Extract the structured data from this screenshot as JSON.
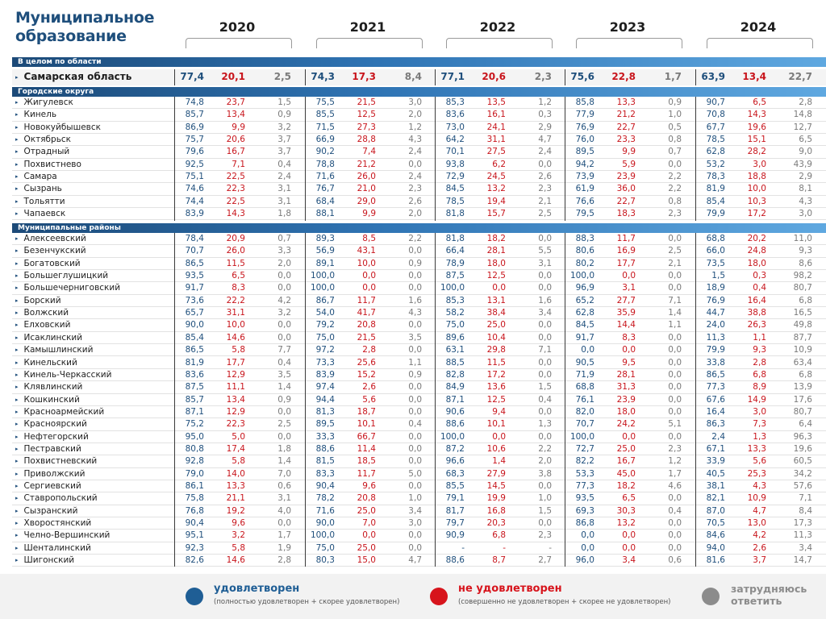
{
  "title": "Муниципальное образование",
  "years": [
    "2020",
    "2021",
    "2022",
    "2023",
    "2024"
  ],
  "sections": {
    "region": "В целом по области",
    "cities": "Городские округа",
    "districts": "Муниципальные районы"
  },
  "legend": {
    "satisfied": "удовлетворен",
    "satisfied_sub": "(полностью удовлетворен + скорее удовлетворен)",
    "unsatisfied": "не удовлетворен",
    "unsatisfied_sub": "(совершенно не удовлетворен + скорее не удовлетворен)",
    "hard": "затрудняюсь ответить"
  },
  "colors": {
    "satisfied": "#1f5e95",
    "unsatisfied": "#d7141c",
    "hard": "#8c8c8c",
    "header": "#1f4f7c"
  },
  "chart_data": {
    "type": "table",
    "columns_per_year": [
      "удовлетворен",
      "не удовлетворен",
      "затрудняюсь ответить"
    ],
    "region": [
      {
        "name": "Самарская область",
        "values": [
          "77,4",
          "20,1",
          "2,5",
          "74,3",
          "17,3",
          "8,4",
          "77,1",
          "20,6",
          "2,3",
          "75,6",
          "22,8",
          "1,7",
          "63,9",
          "13,4",
          "22,7"
        ]
      }
    ],
    "cities": [
      {
        "name": "Жигулевск",
        "values": [
          "74,8",
          "23,7",
          "1,5",
          "75,5",
          "21,5",
          "3,0",
          "85,3",
          "13,5",
          "1,2",
          "85,8",
          "13,3",
          "0,9",
          "90,7",
          "6,5",
          "2,8"
        ]
      },
      {
        "name": "Кинель",
        "values": [
          "85,7",
          "13,4",
          "0,9",
          "85,5",
          "12,5",
          "2,0",
          "83,6",
          "16,1",
          "0,3",
          "77,9",
          "21,2",
          "1,0",
          "70,8",
          "14,3",
          "14,8"
        ]
      },
      {
        "name": "Новокуйбышевск",
        "values": [
          "86,9",
          "9,9",
          "3,2",
          "71,5",
          "27,3",
          "1,2",
          "73,0",
          "24,1",
          "2,9",
          "76,9",
          "22,7",
          "0,5",
          "67,7",
          "19,6",
          "12,7"
        ]
      },
      {
        "name": "Октябрьск",
        "values": [
          "75,7",
          "20,6",
          "3,7",
          "66,9",
          "28,8",
          "4,3",
          "64,2",
          "31,1",
          "4,7",
          "76,0",
          "23,3",
          "0,8",
          "78,5",
          "15,1",
          "6,5"
        ]
      },
      {
        "name": "Отрадный",
        "values": [
          "79,6",
          "16,7",
          "3,7",
          "90,2",
          "7,4",
          "2,4",
          "70,1",
          "27,5",
          "2,4",
          "89,5",
          "9,9",
          "0,7",
          "62,8",
          "28,2",
          "9,0"
        ]
      },
      {
        "name": "Похвистнево",
        "values": [
          "92,5",
          "7,1",
          "0,4",
          "78,8",
          "21,2",
          "0,0",
          "93,8",
          "6,2",
          "0,0",
          "94,2",
          "5,9",
          "0,0",
          "53,2",
          "3,0",
          "43,9"
        ]
      },
      {
        "name": "Самара",
        "values": [
          "75,1",
          "22,5",
          "2,4",
          "71,6",
          "26,0",
          "2,4",
          "72,9",
          "24,5",
          "2,6",
          "73,9",
          "23,9",
          "2,2",
          "78,3",
          "18,8",
          "2,9"
        ]
      },
      {
        "name": "Сызрань",
        "values": [
          "74,6",
          "22,3",
          "3,1",
          "76,7",
          "21,0",
          "2,3",
          "84,5",
          "13,2",
          "2,3",
          "61,9",
          "36,0",
          "2,2",
          "81,9",
          "10,0",
          "8,1"
        ]
      },
      {
        "name": "Тольятти",
        "values": [
          "74,4",
          "22,5",
          "3,1",
          "68,4",
          "29,0",
          "2,6",
          "78,5",
          "19,4",
          "2,1",
          "76,6",
          "22,7",
          "0,8",
          "85,4",
          "10,3",
          "4,3"
        ]
      },
      {
        "name": "Чапаевск",
        "values": [
          "83,9",
          "14,3",
          "1,8",
          "88,1",
          "9,9",
          "2,0",
          "81,8",
          "15,7",
          "2,5",
          "79,5",
          "18,3",
          "2,3",
          "79,9",
          "17,2",
          "3,0"
        ]
      }
    ],
    "districts": [
      {
        "name": "Алексеевский",
        "values": [
          "78,4",
          "20,9",
          "0,7",
          "89,3",
          "8,5",
          "2,2",
          "81,8",
          "18,2",
          "0,0",
          "88,3",
          "11,7",
          "0,0",
          "68,8",
          "20,2",
          "11,0"
        ]
      },
      {
        "name": "Безенчукский",
        "values": [
          "70,7",
          "26,0",
          "3,3",
          "56,9",
          "43,1",
          "0,0",
          "66,4",
          "28,1",
          "5,5",
          "80,6",
          "16,9",
          "2,5",
          "66,0",
          "24,8",
          "9,3"
        ]
      },
      {
        "name": "Богатовский",
        "values": [
          "86,5",
          "11,5",
          "2,0",
          "89,1",
          "10,0",
          "0,9",
          "78,9",
          "18,0",
          "3,1",
          "80,2",
          "17,7",
          "2,1",
          "73,5",
          "18,0",
          "8,6"
        ]
      },
      {
        "name": "Большеглушицкий",
        "values": [
          "93,5",
          "6,5",
          "0,0",
          "100,0",
          "0,0",
          "0,0",
          "87,5",
          "12,5",
          "0,0",
          "100,0",
          "0,0",
          "0,0",
          "1,5",
          "0,3",
          "98,2"
        ]
      },
      {
        "name": "Большечерниговский",
        "values": [
          "91,7",
          "8,3",
          "0,0",
          "100,0",
          "0,0",
          "0,0",
          "100,0",
          "0,0",
          "0,0",
          "96,9",
          "3,1",
          "0,0",
          "18,9",
          "0,4",
          "80,7"
        ]
      },
      {
        "name": "Борский",
        "values": [
          "73,6",
          "22,2",
          "4,2",
          "86,7",
          "11,7",
          "1,6",
          "85,3",
          "13,1",
          "1,6",
          "65,2",
          "27,7",
          "7,1",
          "76,9",
          "16,4",
          "6,8"
        ]
      },
      {
        "name": "Волжский",
        "values": [
          "65,7",
          "31,1",
          "3,2",
          "54,0",
          "41,7",
          "4,3",
          "58,2",
          "38,4",
          "3,4",
          "62,8",
          "35,9",
          "1,4",
          "44,7",
          "38,8",
          "16,5"
        ]
      },
      {
        "name": "Елховский",
        "values": [
          "90,0",
          "10,0",
          "0,0",
          "79,2",
          "20,8",
          "0,0",
          "75,0",
          "25,0",
          "0,0",
          "84,5",
          "14,4",
          "1,1",
          "24,0",
          "26,3",
          "49,8"
        ]
      },
      {
        "name": "Исаклинский",
        "values": [
          "85,4",
          "14,6",
          "0,0",
          "75,0",
          "21,5",
          "3,5",
          "89,6",
          "10,4",
          "0,0",
          "91,7",
          "8,3",
          "0,0",
          "11,3",
          "1,1",
          "87,7"
        ]
      },
      {
        "name": "Камышлинский",
        "values": [
          "86,5",
          "5,8",
          "7,7",
          "97,2",
          "2,8",
          "0,0",
          "63,1",
          "29,8",
          "7,1",
          "0,0",
          "0,0",
          "0,0",
          "79,9",
          "9,3",
          "10,9"
        ]
      },
      {
        "name": "Кинельский",
        "values": [
          "81,9",
          "17,7",
          "0,4",
          "73,3",
          "25,6",
          "1,1",
          "88,5",
          "11,5",
          "0,0",
          "90,5",
          "9,5",
          "0,0",
          "33,8",
          "2,8",
          "63,4"
        ]
      },
      {
        "name": "Кинель-Черкасский",
        "values": [
          "83,6",
          "12,9",
          "3,5",
          "83,9",
          "15,2",
          "0,9",
          "82,8",
          "17,2",
          "0,0",
          "71,9",
          "28,1",
          "0,0",
          "86,5",
          "6,8",
          "6,8"
        ]
      },
      {
        "name": "Клявлинский",
        "values": [
          "87,5",
          "11,1",
          "1,4",
          "97,4",
          "2,6",
          "0,0",
          "84,9",
          "13,6",
          "1,5",
          "68,8",
          "31,3",
          "0,0",
          "77,3",
          "8,9",
          "13,9"
        ]
      },
      {
        "name": "Кошкинский",
        "values": [
          "85,7",
          "13,4",
          "0,9",
          "94,4",
          "5,6",
          "0,0",
          "87,1",
          "12,5",
          "0,4",
          "76,1",
          "23,9",
          "0,0",
          "67,6",
          "14,9",
          "17,6"
        ]
      },
      {
        "name": "Красноармейский",
        "values": [
          "87,1",
          "12,9",
          "0,0",
          "81,3",
          "18,7",
          "0,0",
          "90,6",
          "9,4",
          "0,0",
          "82,0",
          "18,0",
          "0,0",
          "16,4",
          "3,0",
          "80,7"
        ]
      },
      {
        "name": "Красноярский",
        "values": [
          "75,2",
          "22,3",
          "2,5",
          "89,5",
          "10,1",
          "0,4",
          "88,6",
          "10,1",
          "1,3",
          "70,7",
          "24,2",
          "5,1",
          "86,3",
          "7,3",
          "6,4"
        ]
      },
      {
        "name": "Нефтегорский",
        "values": [
          "95,0",
          "5,0",
          "0,0",
          "33,3",
          "66,7",
          "0,0",
          "100,0",
          "0,0",
          "0,0",
          "100,0",
          "0,0",
          "0,0",
          "2,4",
          "1,3",
          "96,3"
        ]
      },
      {
        "name": "Пестравский",
        "values": [
          "80,8",
          "17,4",
          "1,8",
          "88,6",
          "11,4",
          "0,0",
          "87,2",
          "10,6",
          "2,2",
          "72,7",
          "25,0",
          "2,3",
          "67,1",
          "13,3",
          "19,6"
        ]
      },
      {
        "name": "Похвистневский",
        "values": [
          "92,8",
          "5,8",
          "1,4",
          "81,5",
          "18,5",
          "0,0",
          "96,6",
          "1,4",
          "2,0",
          "82,2",
          "16,7",
          "1,2",
          "33,9",
          "5,6",
          "60,5"
        ]
      },
      {
        "name": "Приволжский",
        "values": [
          "79,0",
          "14,0",
          "7,0",
          "83,3",
          "11,7",
          "5,0",
          "68,3",
          "27,9",
          "3,8",
          "53,3",
          "45,0",
          "1,7",
          "40,5",
          "25,3",
          "34,2"
        ]
      },
      {
        "name": "Сергиевский",
        "values": [
          "86,1",
          "13,3",
          "0,6",
          "90,4",
          "9,6",
          "0,0",
          "85,5",
          "14,5",
          "0,0",
          "77,3",
          "18,2",
          "4,6",
          "38,1",
          "4,3",
          "57,6"
        ]
      },
      {
        "name": "Ставропольский",
        "values": [
          "75,8",
          "21,1",
          "3,1",
          "78,2",
          "20,8",
          "1,0",
          "79,1",
          "19,9",
          "1,0",
          "93,5",
          "6,5",
          "0,0",
          "82,1",
          "10,9",
          "7,1"
        ]
      },
      {
        "name": "Сызранский",
        "values": [
          "76,8",
          "19,2",
          "4,0",
          "71,6",
          "25,0",
          "3,4",
          "81,7",
          "16,8",
          "1,5",
          "69,3",
          "30,3",
          "0,4",
          "87,0",
          "4,7",
          "8,4"
        ]
      },
      {
        "name": "Хворостянский",
        "values": [
          "90,4",
          "9,6",
          "0,0",
          "90,0",
          "7,0",
          "3,0",
          "79,7",
          "20,3",
          "0,0",
          "86,8",
          "13,2",
          "0,0",
          "70,5",
          "13,0",
          "17,3"
        ]
      },
      {
        "name": "Челно-Вершинский",
        "values": [
          "95,1",
          "3,2",
          "1,7",
          "100,0",
          "0,0",
          "0,0",
          "90,9",
          "6,8",
          "2,3",
          "0,0",
          "0,0",
          "0,0",
          "84,6",
          "4,2",
          "11,3"
        ]
      },
      {
        "name": "Шенталинский",
        "values": [
          "92,3",
          "5,8",
          "1,9",
          "75,0",
          "25,0",
          "0,0",
          "-",
          "-",
          "-",
          "0,0",
          "0,0",
          "0,0",
          "94,0",
          "2,6",
          "3,4"
        ]
      },
      {
        "name": "Шигонский",
        "values": [
          "82,6",
          "14,6",
          "2,8",
          "80,3",
          "15,0",
          "4,7",
          "88,6",
          "8,7",
          "2,7",
          "96,0",
          "3,4",
          "0,6",
          "81,6",
          "3,7",
          "14,7"
        ]
      }
    ]
  }
}
